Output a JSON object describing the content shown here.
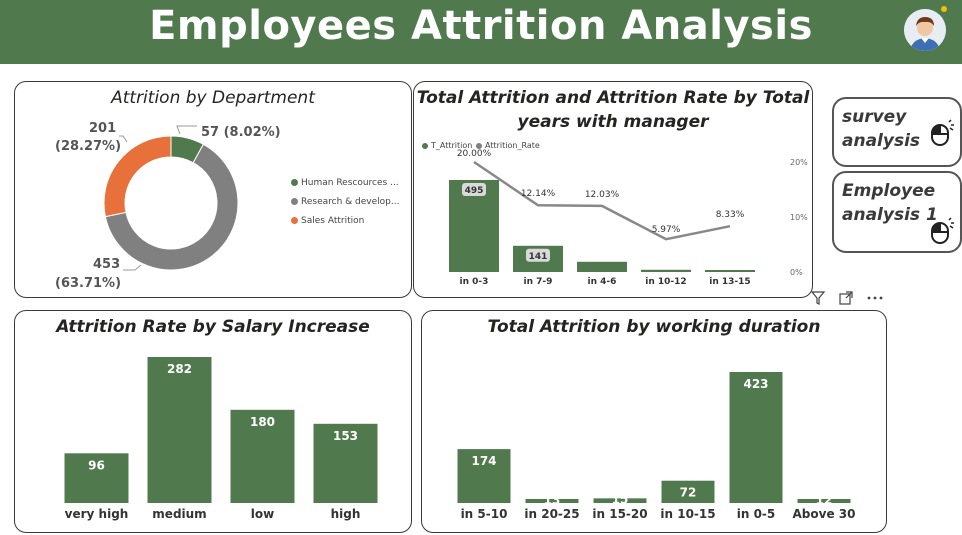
{
  "header": {
    "title": "Employees  Attrition  Analysis"
  },
  "colors": {
    "header_bg": "#507a4e",
    "bar": "#507a4e",
    "gray": "#808080",
    "orange": "#e8703a"
  },
  "nav": {
    "survey_label_1": "survey",
    "survey_label_2": "analysis",
    "employee_label_1": "Employee",
    "employee_label_2": "analysis 1"
  },
  "donut": {
    "title": "Attrition by Department",
    "slices": [
      {
        "name": "Human Rescources ...",
        "value": 57,
        "label": "57 (8.02%)",
        "color": "#507a4e"
      },
      {
        "name": "Research & develop...",
        "value": 453,
        "label_line1": "453",
        "label_line2": "(63.71%)",
        "color": "#808080"
      },
      {
        "name": "Sales Attrition",
        "value": 201,
        "label_line1": "201",
        "label_line2": "(28.27%)",
        "color": "#e8703a"
      }
    ]
  },
  "manager": {
    "title_line1": "Total Attrition and Attrition Rate by Total",
    "title_line2": "years with manager",
    "legend_bar": "T_Attrition",
    "legend_line": "Attrition_Rate",
    "y2_ticks": [
      "20%",
      "10%",
      "0%"
    ]
  },
  "salary": {
    "title": "Attrition Rate by Salary Increase"
  },
  "duration": {
    "title": "Total Attrition by working duration"
  },
  "chart_data": [
    {
      "type": "pie",
      "title": "Attrition by Department",
      "categories": [
        "Human Rescources ...",
        "Research & develop...",
        "Sales Attrition"
      ],
      "values": [
        57,
        453,
        201
      ],
      "percent_labels": [
        "8.02%",
        "63.71%",
        "28.27%"
      ],
      "legend_position": "right"
    },
    {
      "type": "bar",
      "title": "Total Attrition and Attrition Rate by Total years with manager",
      "categories": [
        "in 0-3",
        "in 7-9",
        "in 4-6",
        "in 10-12",
        "in 13-15"
      ],
      "series": [
        {
          "name": "T_Attrition",
          "type": "bar",
          "values": [
            495,
            141,
            55,
            12,
            3
          ],
          "labels": [
            "495",
            "141",
            "",
            "",
            ""
          ]
        },
        {
          "name": "Attrition_Rate",
          "type": "line",
          "values": [
            20.0,
            12.14,
            12.03,
            5.97,
            8.33
          ],
          "labels": [
            "20.00%",
            "12.14%",
            "12.03%",
            "5.97%",
            "8.33%"
          ]
        }
      ],
      "y2lim": [
        0,
        20
      ],
      "legend_position": "top-left"
    },
    {
      "type": "bar",
      "title": "Attrition Rate by Salary Increase",
      "categories": [
        "very high",
        "medium",
        "low",
        "high"
      ],
      "values": [
        96,
        282,
        180,
        153
      ]
    },
    {
      "type": "bar",
      "title": "Total Attrition by working duration",
      "categories": [
        "in 5-10",
        "in 20-25",
        "in 15-20",
        "in 10-15",
        "in 0-5",
        "Above 30"
      ],
      "values": [
        174,
        13,
        15,
        72,
        423,
        12
      ],
      "labels": [
        "174",
        "13",
        "15",
        "72",
        "423",
        "12"
      ]
    }
  ]
}
